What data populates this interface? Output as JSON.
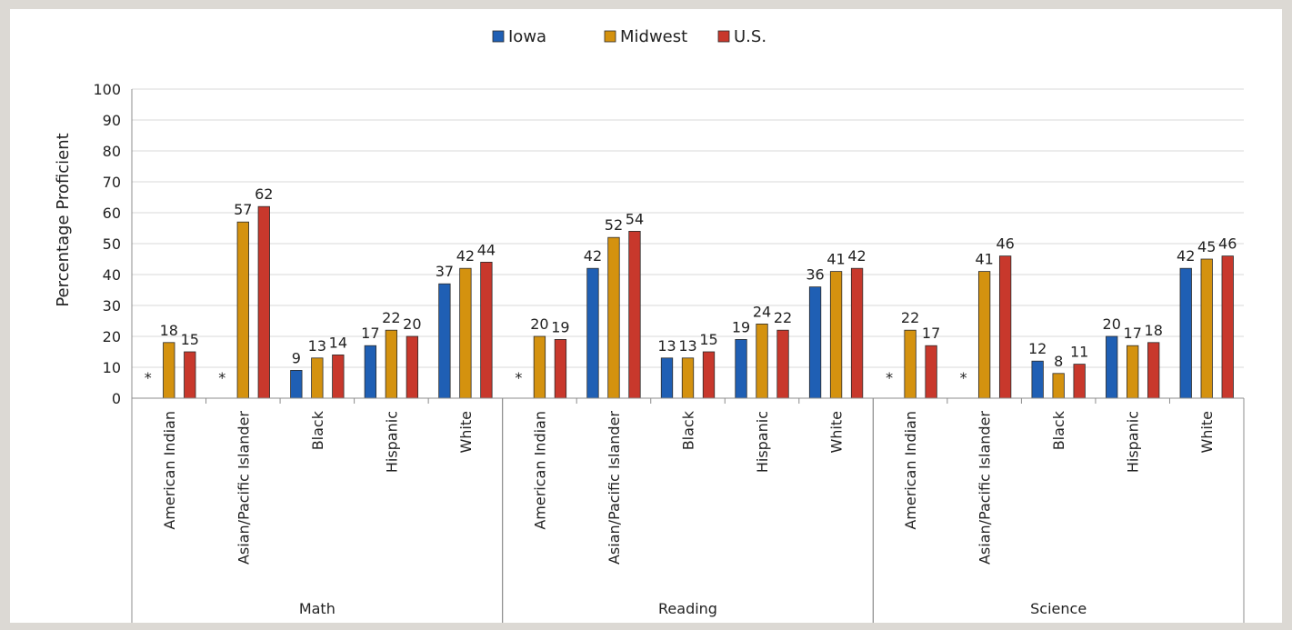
{
  "chart_data": {
    "type": "bar",
    "title": "",
    "ylabel": "Percentage Proficient",
    "xlabel": "",
    "ylim": [
      0,
      100
    ],
    "yticks": [
      0,
      10,
      20,
      30,
      40,
      50,
      60,
      70,
      80,
      90,
      100
    ],
    "grid": true,
    "legend_position": "top-center",
    "missing_marker": "*",
    "groups": [
      "Math",
      "Reading",
      "Science"
    ],
    "categories": [
      "American Indian",
      "Asian/Pacific Islander",
      "Black",
      "Hispanic",
      "White"
    ],
    "series": [
      {
        "name": "Iowa",
        "color": "#1f5fb4",
        "values": [
          [
            null,
            null,
            9,
            17,
            37
          ],
          [
            null,
            42,
            13,
            19,
            36
          ],
          [
            null,
            null,
            12,
            20,
            42
          ]
        ],
        "labels": [
          [
            "*",
            "*",
            "9",
            "17",
            "37"
          ],
          [
            "*",
            "42",
            "13",
            "19",
            "36"
          ],
          [
            "*",
            "*",
            "12",
            "20",
            "42"
          ]
        ]
      },
      {
        "name": "Midwest",
        "color": "#d4920f",
        "values": [
          [
            18,
            57,
            13,
            22,
            42
          ],
          [
            20,
            52,
            13,
            24,
            41
          ],
          [
            22,
            41,
            8,
            17,
            45
          ]
        ],
        "labels": [
          [
            "18",
            "57",
            "13",
            "22",
            "42"
          ],
          [
            "20",
            "52",
            "13",
            "24",
            "41"
          ],
          [
            "22",
            "41",
            "8",
            "17",
            "45"
          ]
        ]
      },
      {
        "name": "U.S.",
        "color": "#c8382c",
        "values": [
          [
            15,
            62,
            14,
            20,
            44
          ],
          [
            19,
            54,
            15,
            22,
            42
          ],
          [
            17,
            46,
            11,
            18,
            46
          ]
        ],
        "labels": [
          [
            "15",
            "62",
            "14",
            "20",
            "44"
          ],
          [
            "19",
            "54",
            "15",
            "22",
            "42"
          ],
          [
            "17",
            "46",
            "11",
            "18",
            "46"
          ]
        ]
      }
    ]
  }
}
